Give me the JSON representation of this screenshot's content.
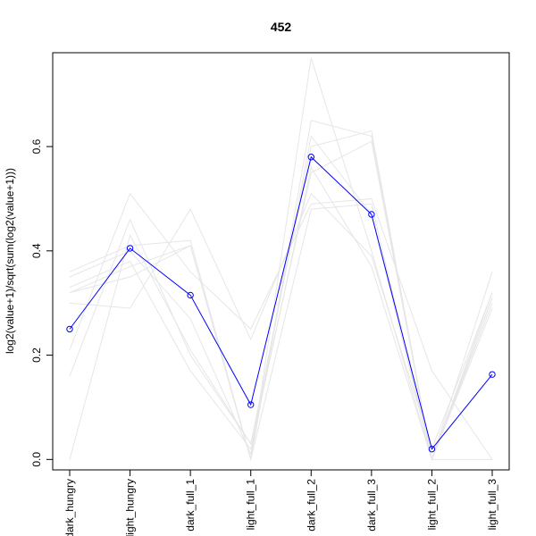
{
  "chart_data": {
    "type": "line",
    "title": "452",
    "xlabel": "",
    "ylabel": "log2(value+1)/sqrt(sum(log2(value+1)))",
    "categories": [
      "dark_hungry",
      "light_hungry",
      "dark_full_1",
      "light_full_1",
      "dark_full_2",
      "dark_full_3",
      "light_full_2",
      "light_full_3"
    ],
    "ylim": [
      -0.02,
      0.78
    ],
    "yticks": [
      0.0,
      0.2,
      0.4,
      0.6
    ],
    "ytick_labels": [
      "0.0",
      "0.2",
      "0.4",
      "0.6"
    ],
    "highlight_color": "#0000ff",
    "background_color": "#e6e6e6",
    "highlight": {
      "values": [
        0.25,
        0.405,
        0.315,
        0.105,
        0.58,
        0.47,
        0.02,
        0.163
      ]
    },
    "background_series": [
      {
        "values": [
          0.32,
          0.35,
          0.41,
          0.0,
          0.65,
          0.62,
          0.0,
          0.32
        ]
      },
      {
        "values": [
          0.36,
          0.41,
          0.42,
          0.0,
          0.77,
          0.4,
          0.0,
          0.36
        ]
      },
      {
        "values": [
          0.21,
          0.51,
          0.36,
          0.25,
          0.49,
          0.5,
          0.17,
          0.0
        ]
      },
      {
        "values": [
          0.0,
          0.43,
          0.21,
          0.03,
          0.55,
          0.61,
          0.0,
          0.31
        ]
      },
      {
        "values": [
          0.16,
          0.46,
          0.2,
          0.03,
          0.6,
          0.63,
          0.0,
          0.0
        ]
      },
      {
        "values": [
          0.3,
          0.29,
          0.48,
          0.23,
          0.51,
          0.39,
          0.02,
          0.32
        ]
      },
      {
        "values": [
          0.33,
          0.38,
          0.17,
          0.02,
          0.56,
          0.37,
          0.0,
          0.3
        ]
      },
      {
        "values": [
          0.32,
          0.37,
          0.41,
          0.0,
          0.48,
          0.49,
          0.0,
          0.31
        ]
      },
      {
        "values": [
          0.35,
          0.4,
          0.27,
          0.01,
          0.62,
          0.47,
          0.0,
          0.29
        ]
      }
    ]
  }
}
